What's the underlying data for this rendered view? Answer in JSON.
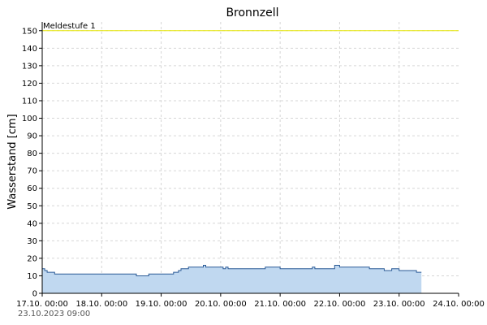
{
  "chart_data": {
    "type": "area",
    "title": "Bronnzell",
    "xlabel": "",
    "ylabel": "Wasserstand [cm]",
    "ylim": [
      0,
      155
    ],
    "yticks": [
      0,
      10,
      20,
      30,
      40,
      50,
      60,
      70,
      80,
      90,
      100,
      110,
      120,
      130,
      140,
      150
    ],
    "xlim": [
      "2023-10-17T00:00",
      "2023-10-24T00:00"
    ],
    "xtick_labels": [
      "17.10. 00:00",
      "18.10. 00:00",
      "19.10. 00:00",
      "20.10. 00:00",
      "21.10. 00:00",
      "22.10. 00:00",
      "23.10. 00:00",
      "24.10. 00:00"
    ],
    "grid": true,
    "timestamp": "23.10.2023  09:00",
    "threshold": {
      "label": "Meldestufe 1",
      "value": 150,
      "color": "#e6e600"
    },
    "colors": {
      "fill": "#c0d8f0",
      "line": "#2a5a96",
      "grid": "#d6d6d6"
    },
    "series": [
      {
        "x": [
          "2023-10-17T00:00",
          "2023-10-17T01:00",
          "2023-10-17T02:00",
          "2023-10-17T03:00",
          "2023-10-17T05:00",
          "2023-10-17T12:00",
          "2023-10-18T00:00",
          "2023-10-18T12:00",
          "2023-10-18T14:00",
          "2023-10-18T18:00",
          "2023-10-18T19:00",
          "2023-10-18T21:00",
          "2023-10-19T00:00",
          "2023-10-19T03:00",
          "2023-10-19T05:00",
          "2023-10-19T07:00",
          "2023-10-19T08:00",
          "2023-10-19T11:00",
          "2023-10-19T16:00",
          "2023-10-19T17:00",
          "2023-10-19T18:00",
          "2023-10-20T00:00",
          "2023-10-20T01:00",
          "2023-10-20T02:00",
          "2023-10-20T03:00",
          "2023-10-20T04:00",
          "2023-10-20T12:00",
          "2023-10-20T18:00",
          "2023-10-21T00:00",
          "2023-10-21T06:00",
          "2023-10-21T12:00",
          "2023-10-21T13:00",
          "2023-10-21T14:00",
          "2023-10-21T20:00",
          "2023-10-21T22:00",
          "2023-10-22T00:00",
          "2023-10-22T06:00",
          "2023-10-22T12:00",
          "2023-10-22T18:00",
          "2023-10-22T19:00",
          "2023-10-22T21:00",
          "2023-10-23T00:00",
          "2023-10-23T06:00",
          "2023-10-23T07:00",
          "2023-10-23T08:00",
          "2023-10-23T09:00"
        ],
        "values": [
          14,
          13,
          12,
          12,
          11,
          11,
          11,
          11,
          10,
          10,
          11,
          11,
          11,
          11,
          12,
          13,
          14,
          15,
          15,
          16,
          15,
          15,
          14,
          15,
          14,
          14,
          14,
          15,
          14,
          14,
          14,
          15,
          14,
          14,
          16,
          15,
          15,
          14,
          13,
          13,
          14,
          13,
          13,
          12,
          12,
          12
        ]
      }
    ]
  }
}
